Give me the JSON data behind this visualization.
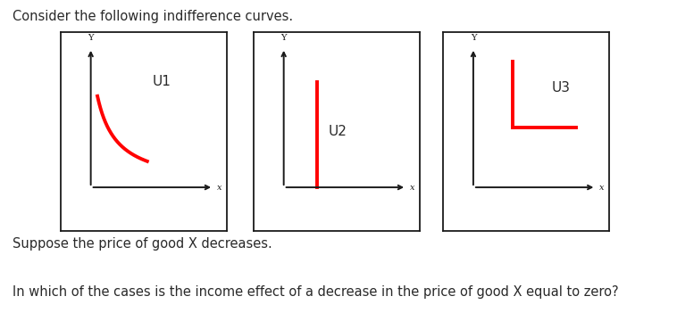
{
  "title": "Consider the following indifference curves.",
  "subtitle1": "Suppose the price of good X decreases.",
  "subtitle2": "In which of the cases is the income effect of a decrease in the price of good X equal to zero?",
  "panel_labels": [
    "U1",
    "U2",
    "U3"
  ],
  "curve_color": "#ff0000",
  "axis_color": "#1a1a1a",
  "box_color": "#1a1a1a",
  "text_color": "#2a2a2a",
  "bg_color": "#ffffff",
  "title_fontsize": 10.5,
  "label_fontsize": 11,
  "axis_label_fontsize": 7
}
